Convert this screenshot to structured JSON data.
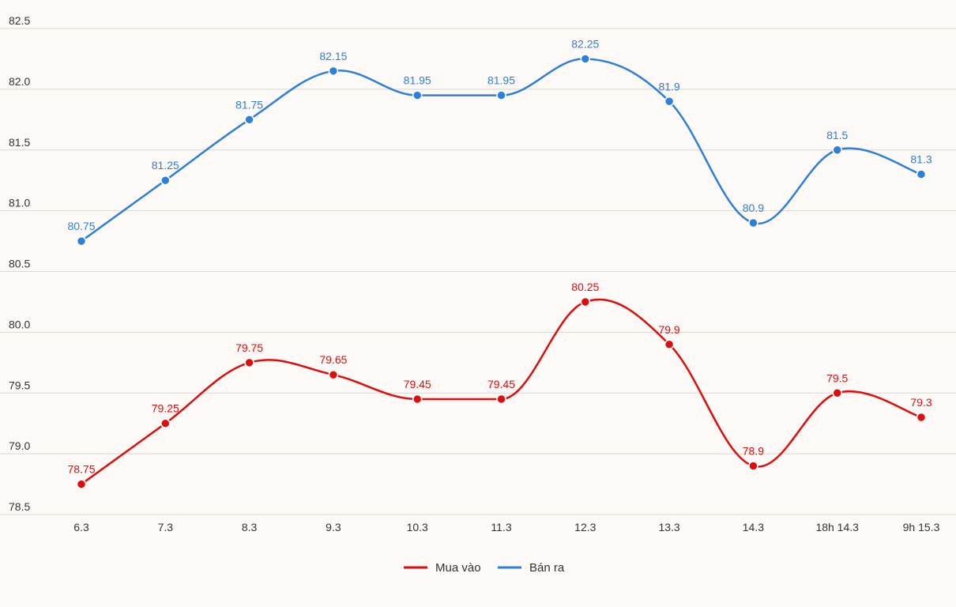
{
  "chart_data": {
    "type": "line",
    "categories": [
      "6.3",
      "7.3",
      "8.3",
      "9.3",
      "10.3",
      "11.3",
      "12.3",
      "13.3",
      "14.3",
      "18h 14.3",
      "9h 15.3"
    ],
    "series": [
      {
        "name": "Mua vào",
        "color": "#e00d0d",
        "values": [
          78.75,
          79.25,
          79.75,
          79.65,
          79.45,
          79.45,
          80.25,
          79.9,
          78.9,
          79.5,
          79.3
        ]
      },
      {
        "name": "Bán ra",
        "color": "#2e7fd8",
        "values": [
          80.75,
          81.25,
          81.75,
          82.15,
          81.95,
          81.95,
          82.25,
          81.9,
          80.9,
          81.5,
          81.3
        ]
      }
    ],
    "yticks": [
      "82.5",
      "82.0",
      "81.5",
      "81.0",
      "80.5",
      "80.0",
      "79.5",
      "79.0",
      "78.5"
    ],
    "ylim": [
      78.5,
      82.5
    ],
    "grid": true,
    "legend_position": "bottom-center",
    "title": "",
    "xlabel": "",
    "ylabel": ""
  }
}
